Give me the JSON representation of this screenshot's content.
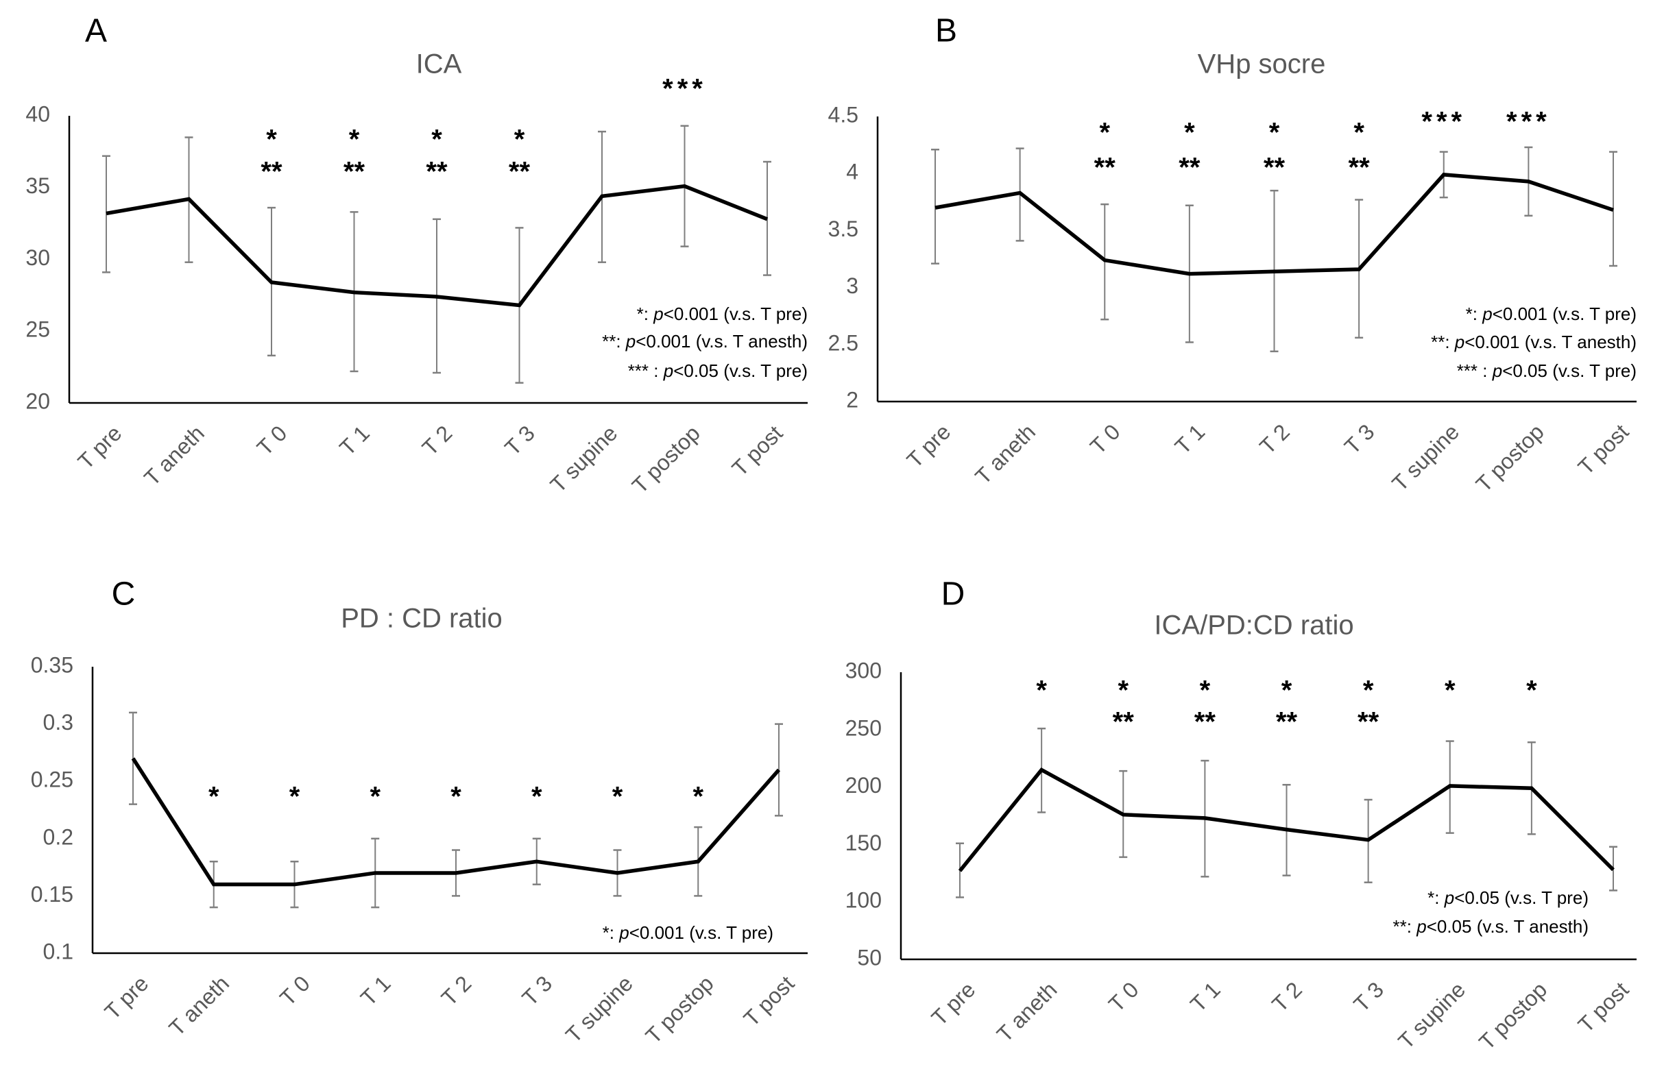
{
  "colors": {
    "line": "#000000",
    "error_bar": "#7f7f7f",
    "axis": "#000000",
    "tick_text": "#595959"
  },
  "chart_data": [
    {
      "panel": "A",
      "type": "line",
      "title": "ICA",
      "categories": [
        "T pre",
        "T aneth",
        "T 0",
        "T 1",
        "T 2",
        "T 3",
        "T supine",
        "T postop",
        "T post"
      ],
      "values": [
        33.2,
        34.2,
        28.4,
        27.7,
        27.4,
        26.8,
        34.4,
        35.1,
        32.8
      ],
      "error_upper": [
        37.2,
        38.5,
        33.6,
        33.3,
        32.8,
        32.2,
        38.9,
        39.3,
        36.8
      ],
      "error_lower": [
        29.1,
        29.8,
        23.3,
        22.2,
        22.1,
        21.4,
        29.8,
        30.9,
        28.9
      ],
      "ylim": [
        20,
        40
      ],
      "yticks": [
        "20",
        "25",
        "30",
        "35",
        "40"
      ],
      "grid": false,
      "significance_rows": [
        [
          "",
          "",
          "",
          "",
          "",
          "",
          "",
          "***",
          ""
        ],
        [
          "",
          "",
          "*",
          "*",
          "*",
          "*",
          "",
          "",
          ""
        ],
        [
          "",
          "",
          "**",
          "**",
          "**",
          "**",
          "",
          "",
          ""
        ]
      ],
      "legend": [
        {
          "mark": "*: ",
          "p": "p",
          "text": "<0.001 (v.s. T pre)"
        },
        {
          "mark": "**: ",
          "p": "p",
          "text": "<0.001 (v.s. T anesth)"
        },
        {
          "mark": "*** : ",
          "p": "p",
          "text": "<0.05 (v.s. T pre)"
        }
      ],
      "legend_placement": "bottom-right"
    },
    {
      "panel": "B",
      "type": "line",
      "title": "VHp socre",
      "categories": [
        "T pre",
        "T aneth",
        "T 0",
        "T 1",
        "T 2",
        "T 3",
        "T supine",
        "T postop",
        "T post"
      ],
      "values": [
        3.7,
        3.83,
        3.24,
        3.12,
        3.14,
        3.16,
        3.99,
        3.93,
        3.68
      ],
      "error_upper": [
        4.21,
        4.22,
        3.73,
        3.72,
        3.85,
        3.77,
        4.19,
        4.23,
        4.19
      ],
      "error_lower": [
        3.21,
        3.41,
        2.72,
        2.52,
        2.44,
        2.56,
        3.79,
        3.63,
        3.19
      ],
      "ylim": [
        2,
        4.5
      ],
      "yticks": [
        "2",
        "2.5",
        "3",
        "3.5",
        "4",
        "4.5"
      ],
      "grid": false,
      "significance_rows": [
        [
          "",
          "",
          "",
          "",
          "",
          "",
          "***",
          "***",
          ""
        ],
        [
          "",
          "",
          "*",
          "*",
          "*",
          "*",
          "",
          "",
          ""
        ],
        [
          "",
          "",
          "**",
          "**",
          "**",
          "**",
          "",
          "",
          ""
        ]
      ],
      "legend": [
        {
          "mark": "*: ",
          "p": "p",
          "text": "<0.001 (v.s. T pre)"
        },
        {
          "mark": "**: ",
          "p": "p",
          "text": "<0.001 (v.s. T anesth)"
        },
        {
          "mark": "*** : ",
          "p": "p",
          "text": "<0.05 (v.s. T pre)"
        }
      ],
      "legend_placement": "bottom-right"
    },
    {
      "panel": "C",
      "type": "line",
      "title": "PD : CD ratio",
      "categories": [
        "T pre",
        "T aneth",
        "T 0",
        "T 1",
        "T 2",
        "T 3",
        "T supine",
        "T postop",
        "T post"
      ],
      "values": [
        0.27,
        0.16,
        0.16,
        0.17,
        0.17,
        0.18,
        0.17,
        0.18,
        0.26
      ],
      "error_upper": [
        0.31,
        0.18,
        0.18,
        0.2,
        0.19,
        0.2,
        0.19,
        0.21,
        0.3
      ],
      "error_lower": [
        0.23,
        0.14,
        0.14,
        0.14,
        0.15,
        0.16,
        0.15,
        0.15,
        0.22
      ],
      "ylim": [
        0.1,
        0.35
      ],
      "yticks": [
        "0.1",
        "0.15",
        "0.2",
        "0.25",
        "0.3",
        "0.35"
      ],
      "grid": false,
      "significance_rows": [
        [
          "",
          "*",
          "*",
          "*",
          "*",
          "*",
          "*",
          "*",
          ""
        ]
      ],
      "legend": [
        {
          "mark": "*: ",
          "p": "p",
          "text": "<0.001 (v.s. T pre)"
        }
      ],
      "legend_placement": "bottom-right"
    },
    {
      "panel": "D",
      "type": "line",
      "title": "ICA/PD:CD ratio",
      "categories": [
        "T pre",
        "T aneth",
        "T 0",
        "T 1",
        "T 2",
        "T 3",
        "T supine",
        "T postop",
        "T post"
      ],
      "values": [
        127,
        215,
        176,
        173,
        163,
        154,
        201,
        199,
        128
      ],
      "error_upper": [
        151,
        251,
        214,
        223,
        202,
        189,
        240,
        239,
        148
      ],
      "error_lower": [
        104,
        178,
        139,
        122,
        123,
        117,
        160,
        159,
        110
      ],
      "ylim": [
        50,
        300
      ],
      "yticks": [
        "50",
        "100",
        "150",
        "200",
        "250",
        "300"
      ],
      "grid": false,
      "significance_rows": [
        [
          "",
          "*",
          "*",
          "*",
          "*",
          "*",
          "*",
          "*",
          ""
        ],
        [
          "",
          "",
          "**",
          "**",
          "**",
          "**",
          "",
          "",
          ""
        ]
      ],
      "legend": [
        {
          "mark": "*: ",
          "p": "p",
          "text": "<0.05 (v.s. T pre)"
        },
        {
          "mark": "**: ",
          "p": "p",
          "text": "<0.05 (v.s. T anesth)"
        }
      ],
      "legend_placement": "bottom-right"
    }
  ]
}
